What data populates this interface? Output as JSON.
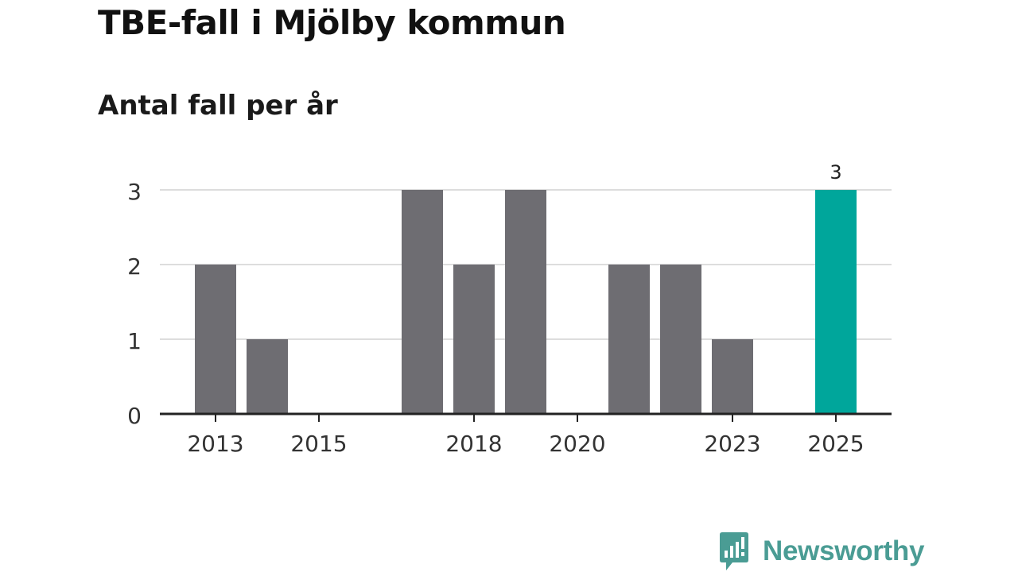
{
  "title": "TBE-fall i Mjölby kommun",
  "subtitle": "Antal fall per år",
  "brand": {
    "name": "Newsworthy",
    "icon": "bar-chart-speech-bubble-icon",
    "color": "#4a9c94"
  },
  "colors": {
    "bar": "#6e6d72",
    "highlight": "#00a69b",
    "grid": "#dddddd",
    "axis": "#222222",
    "text": "#333333"
  },
  "chart_data": {
    "type": "bar",
    "categories": [
      2013,
      2014,
      2015,
      2016,
      2017,
      2018,
      2019,
      2020,
      2021,
      2022,
      2023,
      2024,
      2025
    ],
    "values": [
      2,
      1,
      0,
      0,
      3,
      2,
      3,
      0,
      2,
      2,
      1,
      0,
      3
    ],
    "highlight_index": 12,
    "data_labels": [
      {
        "index": 12,
        "text": "3"
      }
    ],
    "x_tick_labels": [
      "2013",
      "2015",
      "2018",
      "2020",
      "2023",
      "2025"
    ],
    "y_ticks": [
      0,
      1,
      2,
      3
    ],
    "ylim": [
      0,
      3
    ],
    "grid": true,
    "legend": "none"
  }
}
